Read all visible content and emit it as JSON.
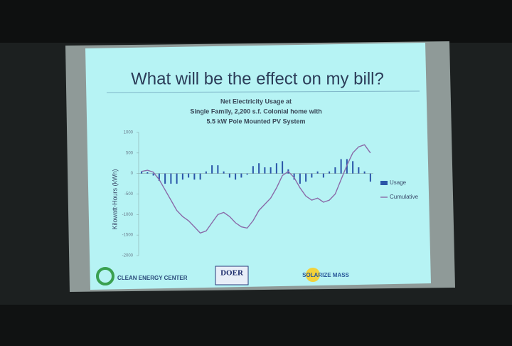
{
  "chart_data": {
    "type": "bar-line",
    "title": "What will be the effect on my bill?",
    "subtitle": [
      "Net Electricity Usage at",
      "Single Family, 2,200 s.f. Colonial home with",
      "5.5 kW Pole Mounted PV System"
    ],
    "y_label": "Kilowatt-Hours (kWh)",
    "categories": [
      null,
      null,
      null,
      null,
      null,
      null,
      null,
      null,
      null,
      null,
      null,
      null,
      null,
      null,
      null,
      null,
      null,
      null,
      null,
      null,
      null,
      null,
      null,
      null,
      null,
      null,
      null,
      null,
      null,
      null,
      null,
      null,
      null,
      null,
      null,
      null,
      null,
      null,
      null,
      null
    ],
    "series": [
      {
        "name": "Usage",
        "type": "bar",
        "color": "#2a55a8",
        "values": [
          50,
          30,
          -50,
          -180,
          -250,
          -250,
          -250,
          -150,
          -100,
          -150,
          -150,
          50,
          200,
          200,
          50,
          -100,
          -150,
          -100,
          -30,
          180,
          250,
          150,
          150,
          250,
          300,
          100,
          -150,
          -250,
          -200,
          -100,
          50,
          -100,
          50,
          150,
          350,
          350,
          300,
          150,
          50,
          -200
        ]
      },
      {
        "name": "Cumulative",
        "type": "line",
        "color": "#8a6aa8",
        "values": [
          50,
          80,
          30,
          -150,
          -400,
          -650,
          -900,
          -1050,
          -1150,
          -1300,
          -1450,
          -1400,
          -1200,
          -1000,
          -950,
          -1050,
          -1200,
          -1300,
          -1330,
          -1150,
          -900,
          -750,
          -600,
          -350,
          -50,
          50,
          -100,
          -350,
          -550,
          -650,
          -600,
          -700,
          -650,
          -500,
          -150,
          200,
          500,
          650,
          700,
          500
        ]
      }
    ],
    "ylim": [
      -2000,
      1000
    ],
    "yticks": [
      -2000,
      -1500,
      -1000,
      -500,
      0,
      500,
      1000
    ]
  },
  "slide": {
    "logos": [
      "CLEAN ENERGY CENTER",
      "DOER",
      "SOLARIZE MASS"
    ]
  }
}
